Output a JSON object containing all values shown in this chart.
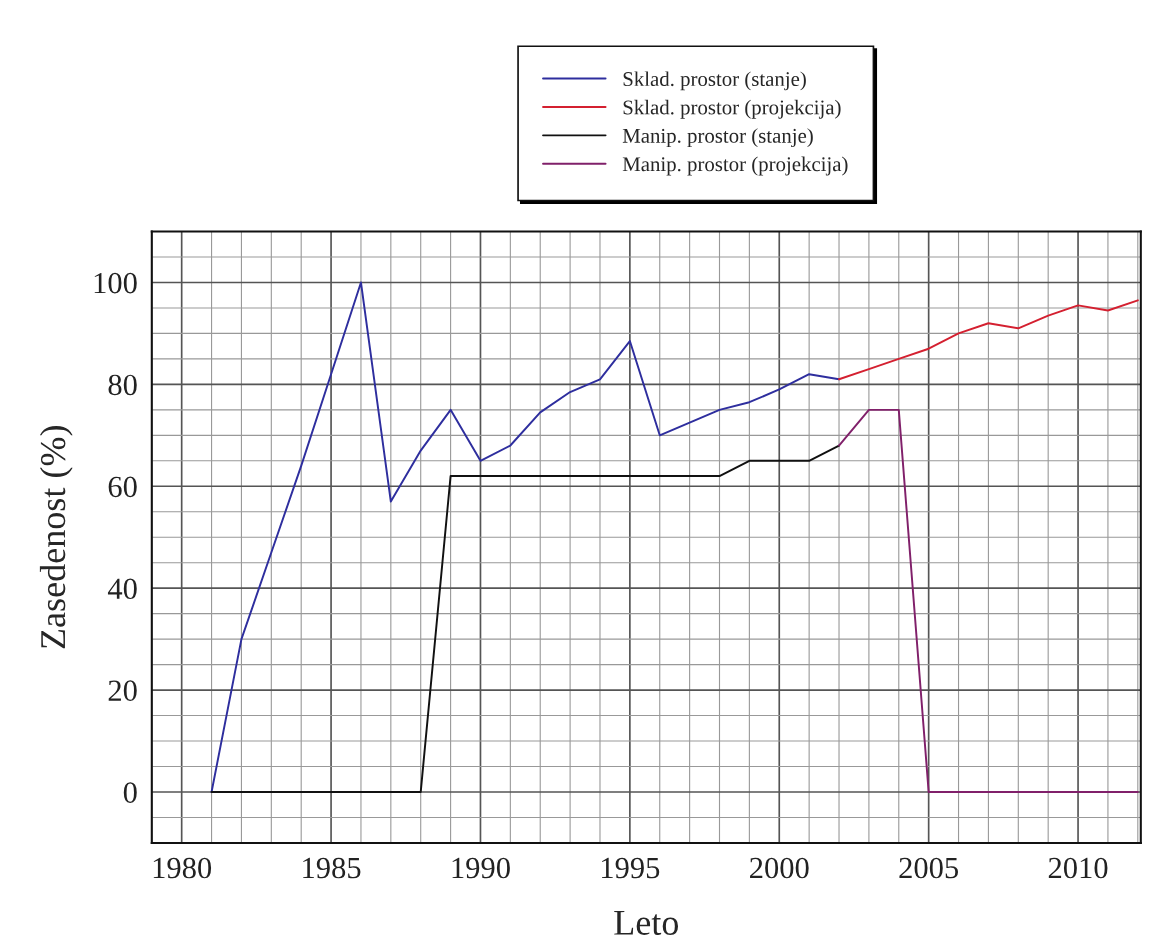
{
  "chart_data": {
    "type": "line",
    "xlabel": "Leto",
    "ylabel": "Zasedenost (%)",
    "xlim": [
      1979,
      2012.1
    ],
    "ylim": [
      -10,
      110
    ],
    "xticks": [
      {
        "value": 1979,
        "label": null
      },
      1980,
      {
        "value": 1981,
        "label": null
      },
      {
        "value": 1982,
        "label": null
      },
      {
        "value": 1983,
        "label": null
      },
      {
        "value": 1984,
        "label": null
      },
      1985,
      {
        "value": 1986,
        "label": null
      },
      {
        "value": 1987,
        "label": null
      },
      {
        "value": 1988,
        "label": null
      },
      {
        "value": 1989,
        "label": null
      },
      1990,
      {
        "value": 1991,
        "label": null
      },
      {
        "value": 1992,
        "label": null
      },
      {
        "value": 1993,
        "label": null
      },
      {
        "value": 1994,
        "label": null
      },
      1995,
      {
        "value": 1996,
        "label": null
      },
      {
        "value": 1997,
        "label": null
      },
      {
        "value": 1998,
        "label": null
      },
      {
        "value": 1999,
        "label": null
      },
      2000,
      {
        "value": 2001,
        "label": null
      },
      {
        "value": 2002,
        "label": null
      },
      {
        "value": 2003,
        "label": null
      },
      {
        "value": 2004,
        "label": null
      },
      2005,
      {
        "value": 2006,
        "label": null
      },
      {
        "value": 2007,
        "label": null
      },
      {
        "value": 2008,
        "label": null
      },
      {
        "value": 2009,
        "label": null
      },
      2010,
      {
        "value": 2011,
        "label": null
      },
      {
        "value": 2012,
        "label": null
      }
    ],
    "yticks": [
      {
        "value": -5,
        "label": null
      },
      0,
      {
        "value": 5,
        "label": null
      },
      {
        "value": 10,
        "label": null
      },
      {
        "value": 15,
        "label": null
      },
      20,
      {
        "value": 25,
        "label": null
      },
      {
        "value": 30,
        "label": null
      },
      {
        "value": 35,
        "label": null
      },
      40,
      {
        "value": 45,
        "label": null
      },
      {
        "value": 50,
        "label": null
      },
      {
        "value": 55,
        "label": null
      },
      60,
      {
        "value": 65,
        "label": null
      },
      {
        "value": 70,
        "label": null
      },
      {
        "value": 75,
        "label": null
      },
      80,
      {
        "value": 85,
        "label": null
      },
      {
        "value": 90,
        "label": null
      },
      {
        "value": 95,
        "label": null
      },
      100,
      {
        "value": 105,
        "label": null
      }
    ],
    "grid": true,
    "legend": "top",
    "marker": "none",
    "line_style": "solid",
    "series": [
      {
        "name": "Sklad. prostor (stanje)",
        "color": "#2e2e9e",
        "x": [
          1981,
          1982,
          1983,
          1984,
          1985,
          1986,
          1987,
          1988,
          1989,
          1990,
          1991,
          1992,
          1993,
          1994,
          1995,
          1996,
          1997,
          1998,
          1999,
          2000,
          2001,
          2002
        ],
        "values": [
          0,
          30,
          47,
          64,
          82,
          100,
          57,
          67,
          75,
          65,
          68,
          74.5,
          78.5,
          81,
          88.5,
          70,
          72.5,
          75,
          76.5,
          79,
          82,
          81
        ]
      },
      {
        "name": "Sklad. prostor (projekcija)",
        "color": "#d42030",
        "x": [
          2002,
          2003,
          2004,
          2005,
          2006,
          2007,
          2008,
          2009,
          2010,
          2011,
          2012
        ],
        "values": [
          81,
          83,
          85,
          87,
          90,
          92,
          91,
          93.5,
          95.5,
          94.5,
          96.5
        ]
      },
      {
        "name": "Manip. prostor (stanje)",
        "color": "#111111",
        "x": [
          1981,
          1982,
          1983,
          1984,
          1985,
          1986,
          1987,
          1988,
          1989,
          1990,
          1991,
          1992,
          1993,
          1994,
          1995,
          1996,
          1997,
          1998,
          1999,
          2000,
          2001,
          2002
        ],
        "values": [
          0,
          0,
          0,
          0,
          0,
          0,
          0,
          0,
          62,
          62,
          62,
          62,
          62,
          62,
          62,
          62,
          62,
          62,
          65,
          65,
          65,
          68
        ]
      },
      {
        "name": "Manip. prostor (projekcija)",
        "color": "#80206a",
        "x": [
          2002,
          2003,
          2004,
          2005,
          2006,
          2007,
          2008,
          2009,
          2010,
          2011,
          2012
        ],
        "values": [
          68,
          75,
          75,
          0,
          0,
          0,
          0,
          0,
          0,
          0,
          0
        ]
      }
    ]
  }
}
